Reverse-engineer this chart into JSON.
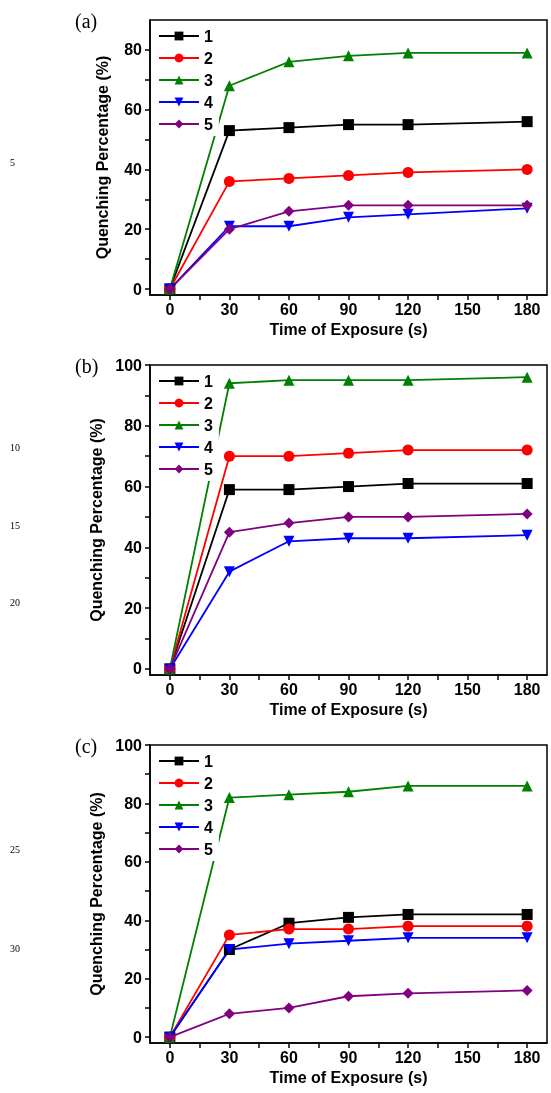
{
  "chart_data": [
    {
      "type": "line",
      "title": "(a)",
      "xlabel": "Time of Exposure (s)",
      "ylabel": "Quenching Percentage (%)",
      "annotations": [
        "5"
      ],
      "x": [
        0,
        30,
        60,
        90,
        120,
        180
      ],
      "xlim": [
        -10,
        190
      ],
      "ylim": [
        -2,
        90
      ],
      "xticks": [
        0,
        {
          "value": 15,
          "label": null
        },
        30,
        {
          "value": 45,
          "label": null
        },
        60,
        {
          "value": 75,
          "label": null
        },
        90,
        {
          "value": 105,
          "label": null
        },
        120,
        150,
        {
          "value": 135,
          "label": null
        },
        {
          "value": 165,
          "label": null
        },
        180
      ],
      "yticks": [
        0,
        {
          "value": 10,
          "label": null
        },
        20,
        {
          "value": 30,
          "label": null
        },
        40,
        {
          "value": 50,
          "label": null
        },
        60,
        {
          "value": 70,
          "label": null
        },
        80
      ],
      "legend": "top left",
      "grid": false,
      "line_style": "solid",
      "series": [
        {
          "name": "1",
          "color": "#000000",
          "marker": "square",
          "values": [
            0,
            53,
            54,
            55,
            55,
            56
          ]
        },
        {
          "name": "2",
          "color": "#ff0000",
          "marker": "circle",
          "values": [
            0,
            36,
            37,
            38,
            39,
            40
          ]
        },
        {
          "name": "3",
          "color": "#008000",
          "marker": "triangle",
          "values": [
            0,
            68,
            76,
            78,
            79,
            79
          ]
        },
        {
          "name": "4",
          "color": "#0000ff",
          "marker": "triangle-down",
          "values": [
            0,
            21,
            21,
            24,
            25,
            27
          ]
        },
        {
          "name": "5",
          "color": "#800080",
          "marker": "diamond",
          "values": [
            0,
            20,
            26,
            28,
            28,
            28
          ]
        }
      ]
    },
    {
      "type": "line",
      "title": "(b)",
      "xlabel": "Time of Exposure (s)",
      "ylabel": "Quenching Percentage (%)",
      "annotations": [
        "10",
        "15",
        "20"
      ],
      "x": [
        0,
        30,
        60,
        90,
        120,
        180
      ],
      "xlim": [
        -10,
        190
      ],
      "ylim": [
        -2,
        100
      ],
      "xticks": [
        0,
        {
          "value": 15,
          "label": null
        },
        30,
        {
          "value": 45,
          "label": null
        },
        60,
        {
          "value": 75,
          "label": null
        },
        90,
        {
          "value": 105,
          "label": null
        },
        120,
        150,
        {
          "value": 135,
          "label": null
        },
        {
          "value": 165,
          "label": null
        },
        180
      ],
      "yticks": [
        0,
        {
          "value": 10,
          "label": null
        },
        20,
        {
          "value": 30,
          "label": null
        },
        40,
        {
          "value": 50,
          "label": null
        },
        60,
        {
          "value": 70,
          "label": null
        },
        80,
        {
          "value": 90,
          "label": null
        },
        100
      ],
      "legend": "top left",
      "grid": false,
      "line_style": "solid",
      "series": [
        {
          "name": "1",
          "color": "#000000",
          "marker": "square",
          "values": [
            0,
            59,
            59,
            60,
            61,
            61
          ]
        },
        {
          "name": "2",
          "color": "#ff0000",
          "marker": "circle",
          "values": [
            0,
            70,
            70,
            71,
            72,
            72
          ]
        },
        {
          "name": "3",
          "color": "#008000",
          "marker": "triangle",
          "values": [
            0,
            94,
            95,
            95,
            95,
            96
          ]
        },
        {
          "name": "4",
          "color": "#0000ff",
          "marker": "triangle-down",
          "values": [
            0,
            32,
            42,
            43,
            43,
            44
          ]
        },
        {
          "name": "5",
          "color": "#800080",
          "marker": "diamond",
          "values": [
            0,
            45,
            48,
            50,
            50,
            51
          ]
        }
      ]
    },
    {
      "type": "line",
      "title": "(c)",
      "xlabel": "Time of Exposure (s)",
      "ylabel": "Quenching Percentage (%)",
      "annotations": [
        "25",
        "30"
      ],
      "x": [
        0,
        30,
        60,
        90,
        120,
        180
      ],
      "xlim": [
        -10,
        190
      ],
      "ylim": [
        -2,
        100
      ],
      "xticks": [
        0,
        {
          "value": 15,
          "label": null
        },
        30,
        {
          "value": 45,
          "label": null
        },
        60,
        {
          "value": 75,
          "label": null
        },
        90,
        {
          "value": 105,
          "label": null
        },
        120,
        150,
        {
          "value": 135,
          "label": null
        },
        {
          "value": 165,
          "label": null
        },
        180
      ],
      "yticks": [
        0,
        {
          "value": 10,
          "label": null
        },
        20,
        {
          "value": 30,
          "label": null
        },
        40,
        {
          "value": 50,
          "label": null
        },
        60,
        {
          "value": 70,
          "label": null
        },
        80,
        {
          "value": 90,
          "label": null
        },
        100
      ],
      "legend": "top left",
      "grid": false,
      "line_style": "solid",
      "series": [
        {
          "name": "1",
          "color": "#000000",
          "marker": "square",
          "values": [
            0,
            30,
            39,
            41,
            42,
            42
          ]
        },
        {
          "name": "2",
          "color": "#ff0000",
          "marker": "circle",
          "values": [
            0,
            35,
            37,
            37,
            38,
            38
          ]
        },
        {
          "name": "3",
          "color": "#008000",
          "marker": "triangle",
          "values": [
            0,
            82,
            83,
            84,
            86,
            86
          ]
        },
        {
          "name": "4",
          "color": "#0000ff",
          "marker": "triangle-down",
          "values": [
            0,
            30,
            32,
            33,
            34,
            34
          ]
        },
        {
          "name": "5",
          "color": "#800080",
          "marker": "diamond",
          "values": [
            0,
            8,
            10,
            14,
            15,
            16
          ]
        }
      ]
    }
  ]
}
